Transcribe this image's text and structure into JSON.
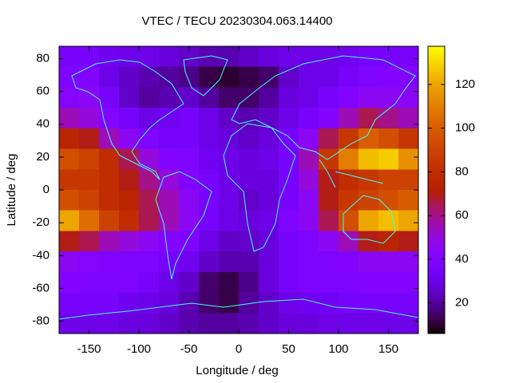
{
  "chart_data": {
    "type": "heatmap",
    "title": "VTEC / TECU 20230304.063.14400",
    "x_label": "Longitude / deg",
    "y_label": "Latitude / deg",
    "x": [
      -170,
      -150,
      -130,
      -110,
      -90,
      -70,
      -50,
      -30,
      -10,
      10,
      30,
      50,
      70,
      90,
      110,
      130,
      150,
      170
    ],
    "y": [
      81.25,
      68.75,
      56.25,
      43.75,
      31.25,
      18.75,
      6.25,
      -6.25,
      -18.75,
      -31.25,
      -43.75,
      -56.25,
      -68.75,
      -81.25
    ],
    "values": [
      [
        35,
        35,
        32,
        30,
        30,
        28,
        25,
        22,
        22,
        25,
        28,
        30,
        30,
        30,
        32,
        35,
        35,
        35
      ],
      [
        38,
        40,
        30,
        25,
        22,
        20,
        18,
        12,
        10,
        12,
        15,
        25,
        30,
        30,
        35,
        38,
        40,
        40
      ],
      [
        42,
        45,
        35,
        25,
        20,
        22,
        25,
        20,
        15,
        15,
        20,
        28,
        30,
        35,
        40,
        45,
        45,
        45
      ],
      [
        55,
        50,
        40,
        35,
        30,
        32,
        35,
        30,
        25,
        22,
        25,
        30,
        35,
        40,
        55,
        65,
        60,
        55
      ],
      [
        75,
        70,
        55,
        45,
        38,
        35,
        35,
        30,
        28,
        25,
        28,
        35,
        45,
        65,
        85,
        100,
        95,
        85
      ],
      [
        95,
        90,
        80,
        65,
        50,
        40,
        38,
        32,
        30,
        28,
        30,
        35,
        55,
        85,
        110,
        125,
        128,
        115
      ],
      [
        85,
        85,
        80,
        70,
        60,
        50,
        40,
        35,
        30,
        28,
        28,
        35,
        50,
        70,
        80,
        85,
        90,
        90
      ],
      [
        95,
        90,
        80,
        75,
        65,
        55,
        45,
        35,
        30,
        25,
        28,
        35,
        45,
        70,
        85,
        90,
        95,
        100
      ],
      [
        120,
        105,
        90,
        80,
        65,
        55,
        45,
        35,
        30,
        28,
        30,
        38,
        45,
        65,
        95,
        120,
        125,
        120
      ],
      [
        70,
        65,
        55,
        50,
        45,
        40,
        38,
        30,
        25,
        25,
        28,
        35,
        38,
        45,
        55,
        70,
        75,
        70
      ],
      [
        45,
        42,
        40,
        38,
        38,
        35,
        32,
        25,
        22,
        22,
        28,
        35,
        38,
        38,
        40,
        45,
        45,
        45
      ],
      [
        40,
        38,
        38,
        38,
        35,
        30,
        25,
        15,
        12,
        18,
        28,
        35,
        38,
        38,
        38,
        40,
        40,
        40
      ],
      [
        35,
        35,
        35,
        32,
        30,
        28,
        22,
        15,
        12,
        20,
        25,
        30,
        32,
        32,
        35,
        35,
        35,
        35
      ],
      [
        30,
        30,
        30,
        28,
        28,
        25,
        22,
        20,
        20,
        22,
        25,
        28,
        28,
        30,
        30,
        30,
        30,
        30
      ]
    ],
    "xlim": [
      -180,
      180
    ],
    "ylim": [
      -87.5,
      87.5
    ],
    "xticks": [
      -150,
      -100,
      -50,
      0,
      50,
      100,
      150
    ],
    "yticks": [
      -80,
      -60,
      -40,
      -20,
      0,
      20,
      40,
      60,
      80
    ],
    "cblim": [
      6,
      137.5
    ],
    "cbticks": [
      20,
      40,
      60,
      80,
      100,
      120
    ]
  }
}
